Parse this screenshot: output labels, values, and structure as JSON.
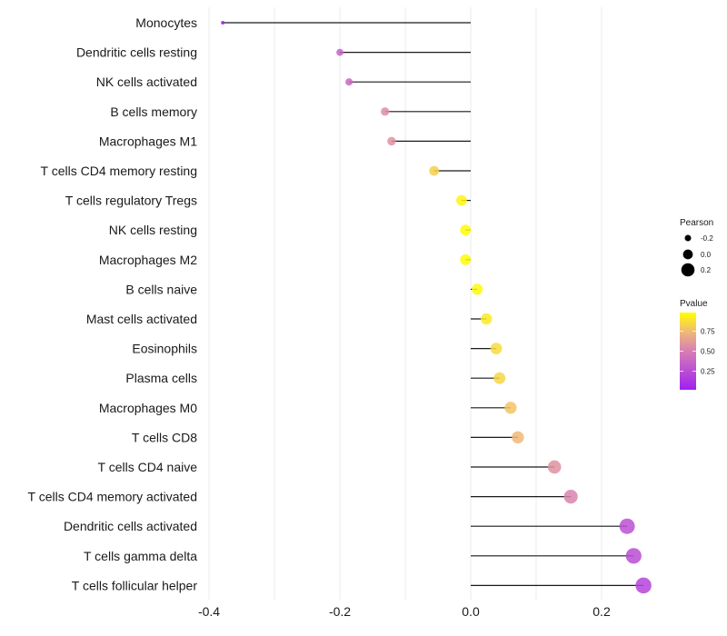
{
  "chart_data": {
    "type": "lollipop",
    "title": "",
    "xlabel": "",
    "ylabel": "",
    "xlim": [
      -0.4,
      0.28
    ],
    "x_ticks": [
      -0.4,
      -0.2,
      0.0,
      0.2
    ],
    "x_tick_labels": [
      "-0.4",
      "-0.2",
      "0.0",
      "0.2"
    ],
    "x_minor_gridlines": [
      -0.3,
      -0.1,
      0.1
    ],
    "grid": true,
    "categories": [
      "Monocytes",
      "Dendritic cells resting",
      "NK cells activated",
      "B cells memory",
      "Macrophages M1",
      "T cells CD4 memory resting",
      "T cells regulatory  Tregs ",
      "NK cells resting",
      "Macrophages M2",
      "B cells naive",
      "Mast cells activated",
      "Eosinophils",
      "Plasma cells",
      "Macrophages M0",
      "T cells CD8",
      "T cells CD4 naive",
      "T cells CD4 memory activated",
      "Dendritic cells activated",
      "T cells gamma delta",
      "T cells follicular helper"
    ],
    "series": [
      {
        "name": "Pearson",
        "values": [
          -0.379,
          -0.2,
          -0.186,
          -0.131,
          -0.121,
          -0.056,
          -0.014,
          -0.008,
          -0.008,
          0.01,
          0.024,
          0.039,
          0.044,
          0.061,
          0.072,
          0.128,
          0.153,
          0.239,
          0.249,
          0.264
        ]
      },
      {
        "name": "Pvalue",
        "values": [
          0.02,
          0.36,
          0.38,
          0.56,
          0.58,
          0.82,
          0.95,
          0.97,
          0.97,
          0.96,
          0.91,
          0.86,
          0.84,
          0.78,
          0.74,
          0.58,
          0.52,
          0.26,
          0.24,
          0.2
        ]
      }
    ],
    "legend": {
      "placement": "right",
      "size_title": "Pearson",
      "size_entries": [
        {
          "label": "-0.2",
          "value": -0.2
        },
        {
          "label": "0.0",
          "value": 0.0
        },
        {
          "label": "0.2",
          "value": 0.2
        }
      ],
      "color_title": "Pvalue",
      "color_ticks": [
        {
          "label": "0.75",
          "value": 0.75
        },
        {
          "label": "0.50",
          "value": 0.5
        },
        {
          "label": "0.25",
          "value": 0.25
        }
      ],
      "color_range": [
        0.02,
        0.98
      ],
      "color_low": "#a020f0",
      "color_high": "#ffff00"
    },
    "colors": {
      "segment": "#1a1a1a",
      "grid": "#ebebeb",
      "low": "#a020f0",
      "high": "#ffff00"
    }
  }
}
